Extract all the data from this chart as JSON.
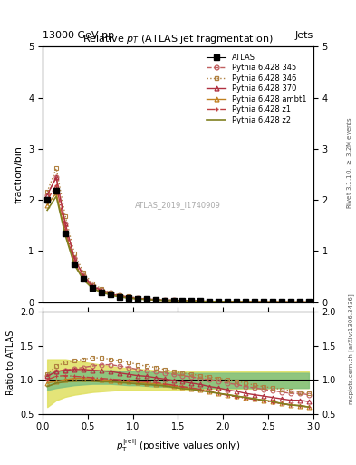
{
  "title": "Relative $p_T$ (ATLAS jet fragmentation)",
  "header_left": "13000 GeV pp",
  "header_right": "Jets",
  "ylabel_main": "fraction/bin",
  "ylabel_ratio": "Ratio to ATLAS",
  "xlabel": "$p_{\\mathrm{T}}^{|\\mathrm{rel}|}$ (positive values only)",
  "right_label": "Rivet 3.1.10, $\\geq$ 3.2M events",
  "watermark": "mcplots.cern.ch [arXiv:1306.3436]",
  "atlas_id": "ATLAS_2019_I1740909",
  "ylim_main": [
    0,
    5
  ],
  "ylim_ratio": [
    0.5,
    2.0
  ],
  "xlim": [
    0,
    3.0
  ],
  "x_data": [
    0.05,
    0.15,
    0.25,
    0.35,
    0.45,
    0.55,
    0.65,
    0.75,
    0.85,
    0.95,
    1.05,
    1.15,
    1.25,
    1.35,
    1.45,
    1.55,
    1.65,
    1.75,
    1.85,
    1.95,
    2.05,
    2.15,
    2.25,
    2.35,
    2.45,
    2.55,
    2.65,
    2.75,
    2.85,
    2.95
  ],
  "atlas_y": [
    2.0,
    2.18,
    1.35,
    0.75,
    0.45,
    0.28,
    0.2,
    0.15,
    0.11,
    0.09,
    0.07,
    0.06,
    0.05,
    0.04,
    0.04,
    0.03,
    0.03,
    0.025,
    0.02,
    0.02,
    0.018,
    0.015,
    0.013,
    0.012,
    0.011,
    0.01,
    0.009,
    0.008,
    0.007,
    0.007
  ],
  "atlas_err": [
    0.05,
    0.05,
    0.04,
    0.03,
    0.02,
    0.015,
    0.01,
    0.008,
    0.006,
    0.005,
    0.004,
    0.003,
    0.003,
    0.002,
    0.002,
    0.002,
    0.001,
    0.001,
    0.001,
    0.001,
    0.001,
    0.001,
    0.001,
    0.001,
    0.001,
    0.001,
    0.001,
    0.001,
    0.001,
    0.001
  ],
  "pythia_345_ratio": [
    1.05,
    1.12,
    1.14,
    1.16,
    1.18,
    1.2,
    1.22,
    1.22,
    1.2,
    1.18,
    1.15,
    1.13,
    1.12,
    1.1,
    1.08,
    1.06,
    1.04,
    1.02,
    1.0,
    0.98,
    0.95,
    0.93,
    0.9,
    0.88,
    0.86,
    0.84,
    0.82,
    0.8,
    0.8,
    0.78
  ],
  "pythia_346_ratio": [
    1.08,
    1.2,
    1.25,
    1.28,
    1.3,
    1.32,
    1.32,
    1.3,
    1.28,
    1.26,
    1.22,
    1.2,
    1.18,
    1.15,
    1.12,
    1.1,
    1.08,
    1.06,
    1.04,
    1.02,
    1.0,
    0.98,
    0.95,
    0.92,
    0.9,
    0.88,
    0.86,
    0.84,
    0.82,
    0.8
  ],
  "pythia_370_ratio": [
    1.05,
    1.12,
    1.14,
    1.15,
    1.15,
    1.14,
    1.13,
    1.12,
    1.1,
    1.08,
    1.06,
    1.05,
    1.03,
    1.01,
    0.99,
    0.97,
    0.95,
    0.93,
    0.9,
    0.88,
    0.85,
    0.83,
    0.8,
    0.78,
    0.76,
    0.74,
    0.72,
    0.7,
    0.7,
    0.68
  ],
  "pythia_ambt1_ratio": [
    0.95,
    0.98,
    1.0,
    1.02,
    1.02,
    1.01,
    1.0,
    0.99,
    0.98,
    0.97,
    0.96,
    0.95,
    0.94,
    0.93,
    0.91,
    0.89,
    0.87,
    0.85,
    0.83,
    0.8,
    0.78,
    0.76,
    0.74,
    0.72,
    0.7,
    0.68,
    0.65,
    0.63,
    0.62,
    0.6
  ],
  "pythia_z1_ratio": [
    1.0,
    1.05,
    1.06,
    1.05,
    1.04,
    1.03,
    1.02,
    1.01,
    1.0,
    0.99,
    0.98,
    0.97,
    0.96,
    0.94,
    0.92,
    0.9,
    0.88,
    0.86,
    0.83,
    0.8,
    0.77,
    0.75,
    0.73,
    0.71,
    0.69,
    0.67,
    0.65,
    0.63,
    0.62,
    0.6
  ],
  "pythia_z2_ratio": [
    0.9,
    0.95,
    0.97,
    0.98,
    0.98,
    0.98,
    0.97,
    0.97,
    0.96,
    0.95,
    0.94,
    0.93,
    0.92,
    0.91,
    0.89,
    0.87,
    0.86,
    0.84,
    0.82,
    0.8,
    0.78,
    0.76,
    0.74,
    0.72,
    0.7,
    0.68,
    0.65,
    0.63,
    0.62,
    0.6
  ],
  "green_band_lo": [
    0.85,
    0.88,
    0.9,
    0.92,
    0.93,
    0.94,
    0.94,
    0.94,
    0.93,
    0.92,
    0.92,
    0.91,
    0.9,
    0.9,
    0.89,
    0.89,
    0.88,
    0.88,
    0.88,
    0.88,
    0.88,
    0.88,
    0.88,
    0.88,
    0.88,
    0.88,
    0.88,
    0.88,
    0.88,
    0.88
  ],
  "green_band_hi": [
    1.1,
    1.12,
    1.13,
    1.14,
    1.14,
    1.14,
    1.14,
    1.14,
    1.13,
    1.13,
    1.12,
    1.12,
    1.11,
    1.11,
    1.1,
    1.1,
    1.1,
    1.1,
    1.1,
    1.1,
    1.1,
    1.1,
    1.1,
    1.1,
    1.1,
    1.1,
    1.1,
    1.1,
    1.1,
    1.1
  ],
  "yellow_band_lo": [
    0.6,
    0.7,
    0.75,
    0.78,
    0.8,
    0.82,
    0.83,
    0.84,
    0.85,
    0.85,
    0.85,
    0.85,
    0.85,
    0.85,
    0.85,
    0.86,
    0.86,
    0.86,
    0.87,
    0.87,
    0.87,
    0.87,
    0.87,
    0.87,
    0.87,
    0.88,
    0.88,
    0.88,
    0.88,
    0.88
  ],
  "yellow_band_hi": [
    1.3,
    1.3,
    1.3,
    1.28,
    1.26,
    1.24,
    1.22,
    1.2,
    1.18,
    1.17,
    1.16,
    1.15,
    1.14,
    1.13,
    1.13,
    1.12,
    1.12,
    1.12,
    1.12,
    1.12,
    1.12,
    1.12,
    1.12,
    1.12,
    1.12,
    1.12,
    1.12,
    1.12,
    1.12,
    1.12
  ],
  "color_345": "#c06060",
  "color_346": "#b08040",
  "color_370": "#b03040",
  "color_ambt1": "#c08020",
  "color_z1": "#c04040",
  "color_z2": "#808020",
  "color_atlas_fill": "#888888",
  "color_green_band": "#80c080",
  "color_yellow_band": "#e0e060"
}
